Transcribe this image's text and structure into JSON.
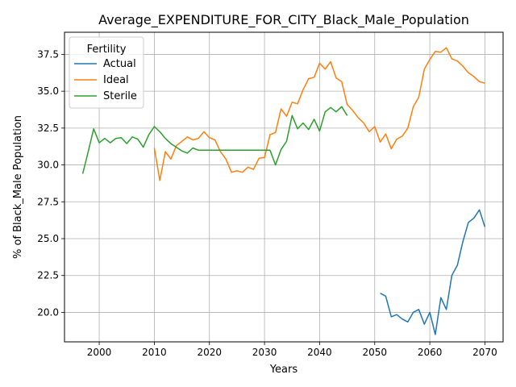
{
  "chart_data": {
    "type": "line",
    "title": "Average_EXPENDITURE_FOR_CITY_Black_Male_Population",
    "xlabel": "Years",
    "ylabel": "% of Black_Male Population",
    "xlim": [
      1993.7,
      2073.3
    ],
    "ylim": [
      18.0,
      39.0
    ],
    "xticks": [
      2000,
      2010,
      2020,
      2030,
      2040,
      2050,
      2060,
      2070
    ],
    "yticks": [
      20.0,
      22.5,
      25.0,
      27.5,
      30.0,
      32.5,
      35.0,
      37.5
    ],
    "grid": true,
    "legend": {
      "title": "Fertility",
      "placement": "upper-left"
    },
    "series": [
      {
        "name": "Actual",
        "color": "#1f77b4",
        "x": [
          2051,
          2052,
          2053,
          2054,
          2055,
          2056,
          2057,
          2058,
          2059,
          2060,
          2061,
          2062,
          2063,
          2064,
          2065,
          2066,
          2067,
          2068,
          2069,
          2070
        ],
        "y": [
          21.3,
          21.1,
          19.7,
          19.85,
          19.55,
          19.35,
          20.0,
          20.2,
          19.2,
          20.0,
          18.5,
          21.0,
          20.2,
          22.5,
          23.2,
          24.8,
          26.1,
          26.4,
          26.95,
          25.8
        ]
      },
      {
        "name": "Ideal",
        "color": "#ff7f0e",
        "x": [
          2010,
          2011,
          2012,
          2013,
          2014,
          2015,
          2016,
          2017,
          2018,
          2019,
          2020,
          2021,
          2022,
          2023,
          2024,
          2025,
          2026,
          2027,
          2028,
          2029,
          2030,
          2031,
          2032,
          2033,
          2034,
          2035,
          2036,
          2037,
          2038,
          2039,
          2040,
          2041,
          2042,
          2043,
          2044,
          2045,
          2046,
          2047,
          2048,
          2049,
          2050,
          2051,
          2052,
          2053,
          2054,
          2055,
          2056,
          2057,
          2058,
          2059,
          2060,
          2061,
          2062,
          2063,
          2064,
          2065,
          2066,
          2067,
          2068,
          2069,
          2070
        ],
        "y": [
          31.15,
          28.95,
          30.9,
          30.4,
          31.3,
          31.6,
          31.9,
          31.7,
          31.8,
          32.25,
          31.85,
          31.7,
          30.9,
          30.4,
          29.5,
          29.6,
          29.5,
          29.85,
          29.7,
          30.45,
          30.5,
          32.05,
          32.2,
          33.8,
          33.3,
          34.25,
          34.15,
          35.1,
          35.85,
          35.95,
          36.9,
          36.5,
          37.0,
          35.9,
          35.65,
          34.1,
          33.7,
          33.2,
          32.85,
          32.25,
          32.6,
          31.55,
          32.1,
          31.1,
          31.75,
          31.95,
          32.5,
          33.95,
          34.6,
          36.5,
          37.15,
          37.7,
          37.65,
          37.95,
          37.2,
          37.05,
          36.7,
          36.25,
          36.0,
          35.65,
          35.55
        ]
      },
      {
        "name": "Sterile",
        "color": "#2ca02c",
        "x": [
          1997,
          1998,
          1999,
          2000,
          2001,
          2002,
          2003,
          2004,
          2005,
          2006,
          2007,
          2008,
          2009,
          2010,
          2011,
          2012,
          2013,
          2014,
          2015,
          2016,
          2017,
          2018,
          2019,
          2020,
          2021,
          2022,
          2023,
          2024,
          2025,
          2026,
          2027,
          2028,
          2029,
          2030,
          2031,
          2032,
          2033,
          2034,
          2035,
          2036,
          2037,
          2038,
          2039,
          2040,
          2041,
          2042,
          2043,
          2044,
          2045
        ],
        "y": [
          29.4,
          30.9,
          32.45,
          31.5,
          31.8,
          31.5,
          31.8,
          31.85,
          31.45,
          31.9,
          31.75,
          31.2,
          32.05,
          32.6,
          32.25,
          31.8,
          31.45,
          31.2,
          30.95,
          30.8,
          31.15,
          31.0,
          31.0,
          31.0,
          31.0,
          31.0,
          31.0,
          31.0,
          31.0,
          31.0,
          31.0,
          31.0,
          31.0,
          31.0,
          31.0,
          30.0,
          31.05,
          31.6,
          33.35,
          32.45,
          32.85,
          32.4,
          33.1,
          32.3,
          33.6,
          33.9,
          33.6,
          33.95,
          33.35
        ]
      }
    ]
  }
}
